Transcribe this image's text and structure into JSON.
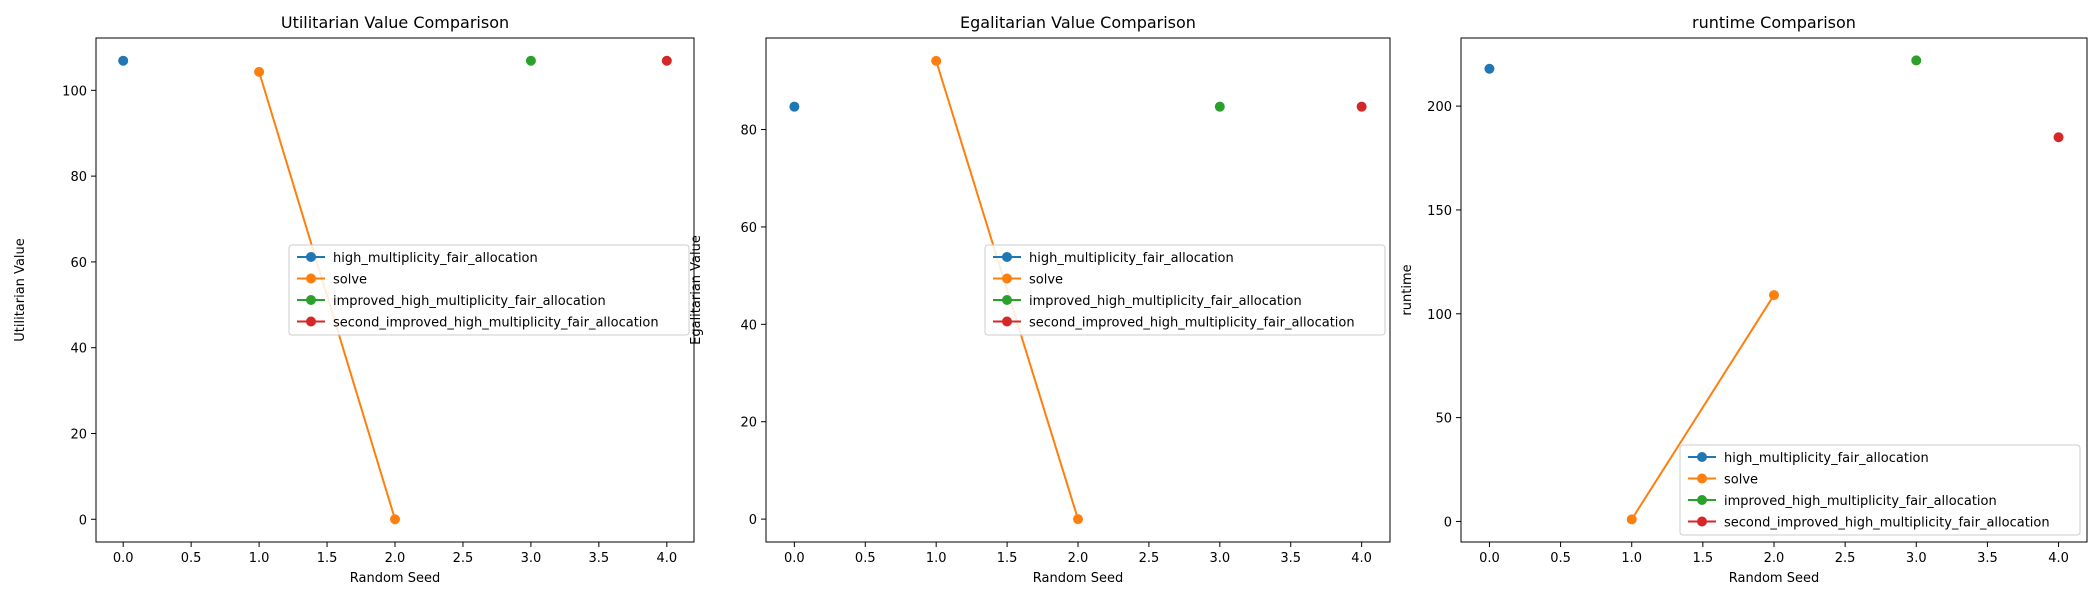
{
  "colors": {
    "blue": "#1f77b4",
    "orange": "#ff7f0e",
    "green": "#2ca02c",
    "red": "#d62728"
  },
  "chart_data": [
    {
      "type": "line",
      "title": "Utilitarian Value Comparison",
      "xlabel": "Random Seed",
      "ylabel": "Utilitarian Value",
      "xlim": [
        -0.2,
        4.2
      ],
      "ylim": [
        -5.3,
        112.2
      ],
      "xticks": [
        "0.0",
        "0.5",
        "1.0",
        "1.5",
        "2.0",
        "2.5",
        "3.0",
        "3.5",
        "4.0"
      ],
      "yticks": [
        "0",
        "20",
        "40",
        "60",
        "80",
        "100"
      ],
      "legend_position": "center-right",
      "series": [
        {
          "name": "high_multiplicity_fair_allocation",
          "color": "#1f77b4",
          "x": [
            0
          ],
          "y": [
            106.9
          ]
        },
        {
          "name": "solve",
          "color": "#ff7f0e",
          "x": [
            1,
            2
          ],
          "y": [
            104.3,
            0
          ]
        },
        {
          "name": "improved_high_multiplicity_fair_allocation",
          "color": "#2ca02c",
          "x": [
            3
          ],
          "y": [
            106.9
          ]
        },
        {
          "name": "second_improved_high_multiplicity_fair_allocation",
          "color": "#d62728",
          "x": [
            4
          ],
          "y": [
            106.9
          ]
        }
      ]
    },
    {
      "type": "line",
      "title": "Egalitarian Value Comparison",
      "xlabel": "Random Seed",
      "ylabel": "Egalitarian Value",
      "xlim": [
        -0.2,
        4.2
      ],
      "ylim": [
        -4.7,
        98.8
      ],
      "xticks": [
        "0.0",
        "0.5",
        "1.0",
        "1.5",
        "2.0",
        "2.5",
        "3.0",
        "3.5",
        "4.0"
      ],
      "yticks": [
        "0",
        "20",
        "40",
        "60",
        "80"
      ],
      "legend_position": "center-right",
      "series": [
        {
          "name": "high_multiplicity_fair_allocation",
          "color": "#1f77b4",
          "x": [
            0
          ],
          "y": [
            84.7
          ]
        },
        {
          "name": "solve",
          "color": "#ff7f0e",
          "x": [
            1,
            2
          ],
          "y": [
            94.1,
            0
          ]
        },
        {
          "name": "improved_high_multiplicity_fair_allocation",
          "color": "#2ca02c",
          "x": [
            3
          ],
          "y": [
            84.7
          ]
        },
        {
          "name": "second_improved_high_multiplicity_fair_allocation",
          "color": "#d62728",
          "x": [
            4
          ],
          "y": [
            84.7
          ]
        }
      ]
    },
    {
      "type": "line",
      "title": "runtime Comparison",
      "xlabel": "Random Seed",
      "ylabel": "runtime",
      "xlim": [
        -0.2,
        4.2
      ],
      "ylim": [
        -9.9,
        232.8
      ],
      "xticks": [
        "0.0",
        "0.5",
        "1.0",
        "1.5",
        "2.0",
        "2.5",
        "3.0",
        "3.5",
        "4.0"
      ],
      "yticks": [
        "0",
        "50",
        "100",
        "150",
        "200"
      ],
      "legend_position": "lower-right",
      "series": [
        {
          "name": "high_multiplicity_fair_allocation",
          "color": "#1f77b4",
          "x": [
            0
          ],
          "y": [
            218
          ]
        },
        {
          "name": "solve",
          "color": "#ff7f0e",
          "x": [
            1,
            2
          ],
          "y": [
            1,
            109
          ]
        },
        {
          "name": "improved_high_multiplicity_fair_allocation",
          "color": "#2ca02c",
          "x": [
            3
          ],
          "y": [
            222
          ]
        },
        {
          "name": "second_improved_high_multiplicity_fair_allocation",
          "color": "#d62728",
          "x": [
            4
          ],
          "y": [
            185
          ]
        }
      ]
    }
  ]
}
